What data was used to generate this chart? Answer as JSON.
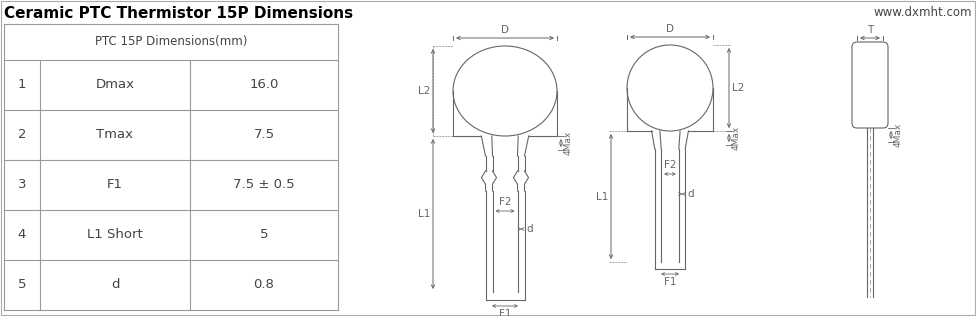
{
  "title": "Ceramic PTC Thermistor 15P Dimensions",
  "website": "www.dxmht.com",
  "table_header": "PTC 15P Dimensions(mm)",
  "table_rows": [
    [
      "1",
      "Dmax",
      "16.0"
    ],
    [
      "2",
      "Tmax",
      "7.5"
    ],
    [
      "3",
      "F1",
      "7.5 ± 0.5"
    ],
    [
      "4",
      "L1 Short",
      "5"
    ],
    [
      "5",
      "d",
      "0.8"
    ]
  ],
  "bg_color": "#ffffff",
  "border_color": "#999999",
  "title_color": "#000000",
  "text_color": "#444444",
  "line_color": "#666666",
  "fig_w": 9.76,
  "fig_h": 3.16,
  "dpi": 100
}
